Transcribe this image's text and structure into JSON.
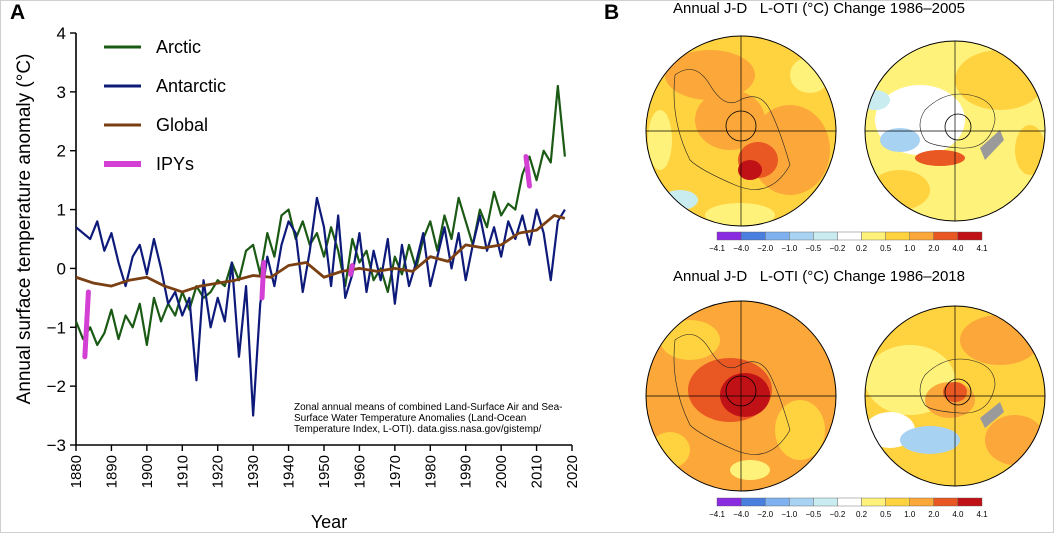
{
  "panel_a": {
    "letter": "A",
    "chart_data": {
      "type": "line",
      "xlabel": "Year",
      "ylabel": "Annual surface temperature anomaly (°C)",
      "xlim": [
        1880,
        2020
      ],
      "ylim": [
        -3,
        4
      ],
      "xticks": [
        "1880",
        "1890",
        "1900",
        "1910",
        "1920",
        "1930",
        "1940",
        "1950",
        "1960",
        "1970",
        "1980",
        "1990",
        "2000",
        "2010",
        "2020"
      ],
      "yticks": [
        "−3",
        "−2",
        "−1",
        "0",
        "1",
        "2",
        "3",
        "4"
      ],
      "grid": false,
      "legend_position": "top-left",
      "series": [
        {
          "name": "Arctic",
          "color": "#1a5a14",
          "x": [
            1880,
            1882,
            1884,
            1886,
            1888,
            1890,
            1892,
            1894,
            1896,
            1898,
            1900,
            1902,
            1904,
            1906,
            1908,
            1910,
            1912,
            1914,
            1916,
            1918,
            1920,
            1922,
            1924,
            1926,
            1928,
            1930,
            1932,
            1934,
            1936,
            1938,
            1940,
            1942,
            1944,
            1946,
            1948,
            1950,
            1952,
            1954,
            1956,
            1958,
            1960,
            1962,
            1964,
            1966,
            1968,
            1970,
            1972,
            1974,
            1976,
            1978,
            1980,
            1982,
            1984,
            1986,
            1988,
            1990,
            1992,
            1994,
            1996,
            1998,
            2000,
            2002,
            2004,
            2006,
            2008,
            2010,
            2012,
            2014,
            2016,
            2018
          ],
          "y": [
            -0.9,
            -1.2,
            -1.0,
            -1.3,
            -1.1,
            -0.7,
            -1.2,
            -0.8,
            -1.0,
            -0.6,
            -1.3,
            -0.5,
            -0.9,
            -0.6,
            -0.8,
            -0.4,
            -0.7,
            -0.3,
            -0.5,
            -0.4,
            -0.2,
            -0.3,
            0.1,
            -0.2,
            0.3,
            0.4,
            -0.1,
            0.6,
            0.2,
            0.9,
            1.0,
            0.5,
            0.8,
            0.4,
            0.6,
            0.2,
            0.7,
            0.3,
            -0.3,
            0.5,
            0.1,
            0.3,
            -0.2,
            0.0,
            -0.4,
            0.2,
            -0.1,
            0.4,
            0.0,
            0.5,
            0.8,
            0.3,
            0.9,
            0.5,
            1.2,
            0.8,
            0.4,
            1.0,
            0.7,
            1.3,
            0.9,
            1.1,
            1.0,
            1.6,
            1.9,
            1.5,
            2.0,
            1.8,
            3.1,
            1.9
          ]
        },
        {
          "name": "Antarctic",
          "color": "#0d1a7a",
          "x": [
            1880,
            1882,
            1884,
            1886,
            1888,
            1890,
            1892,
            1894,
            1896,
            1898,
            1900,
            1902,
            1904,
            1906,
            1908,
            1910,
            1912,
            1914,
            1916,
            1918,
            1920,
            1922,
            1924,
            1926,
            1928,
            1930,
            1932,
            1934,
            1936,
            1938,
            1940,
            1942,
            1944,
            1946,
            1948,
            1950,
            1952,
            1954,
            1956,
            1958,
            1960,
            1962,
            1964,
            1966,
            1968,
            1970,
            1972,
            1974,
            1976,
            1978,
            1980,
            1982,
            1984,
            1986,
            1988,
            1990,
            1992,
            1994,
            1996,
            1998,
            2000,
            2002,
            2004,
            2006,
            2008,
            2010,
            2012,
            2014,
            2016,
            2018
          ],
          "y": [
            0.7,
            0.6,
            0.5,
            0.8,
            0.3,
            0.6,
            0.1,
            -0.3,
            0.2,
            0.4,
            -0.1,
            0.5,
            0.0,
            -0.6,
            -0.4,
            -0.8,
            -0.5,
            -1.9,
            -0.2,
            -1.0,
            -0.5,
            -0.9,
            0.1,
            -1.5,
            -0.3,
            -2.5,
            -0.6,
            0.2,
            -0.3,
            0.4,
            0.8,
            0.6,
            -0.4,
            0.3,
            1.2,
            0.7,
            -0.3,
            0.9,
            -0.5,
            -0.1,
            0.6,
            -0.4,
            0.3,
            -0.2,
            0.5,
            -0.6,
            0.4,
            -0.3,
            0.1,
            0.6,
            -0.3,
            0.2,
            0.7,
            0.0,
            0.6,
            -0.2,
            0.4,
            0.9,
            0.3,
            0.7,
            0.2,
            0.8,
            0.5,
            0.9,
            0.4,
            1.0,
            0.6,
            -0.2,
            0.8,
            1.0
          ]
        },
        {
          "name": "Global",
          "color": "#7a3f12",
          "x": [
            1880,
            1885,
            1890,
            1895,
            1900,
            1905,
            1910,
            1915,
            1920,
            1925,
            1930,
            1935,
            1940,
            1945,
            1950,
            1955,
            1960,
            1965,
            1970,
            1975,
            1980,
            1985,
            1990,
            1995,
            2000,
            2005,
            2010,
            2015,
            2018
          ],
          "y": [
            -0.15,
            -0.25,
            -0.3,
            -0.2,
            -0.15,
            -0.3,
            -0.4,
            -0.3,
            -0.25,
            -0.2,
            -0.12,
            -0.15,
            0.05,
            0.1,
            -0.15,
            -0.05,
            0.0,
            -0.05,
            0.0,
            -0.05,
            0.2,
            0.12,
            0.4,
            0.35,
            0.4,
            0.6,
            0.65,
            0.9,
            0.85
          ]
        },
        {
          "name": "IPYs",
          "color": "#d43fd4",
          "segments": [
            {
              "x": [
                1882.5,
                1883.5
              ],
              "y": [
                -1.5,
                -0.4
              ]
            },
            {
              "x": [
                1932.5,
                1933.0
              ],
              "y": [
                -0.5,
                0.1
              ]
            },
            {
              "x": [
                1957.5,
                1958.0
              ],
              "y": [
                -0.1,
                0.05
              ]
            },
            {
              "x": [
                2007.0,
                2008.0
              ],
              "y": [
                1.9,
                1.4
              ]
            }
          ]
        }
      ]
    },
    "legend": [
      "Arctic",
      "Antarctic",
      "Global",
      "IPYs"
    ],
    "annotation": [
      "Zonal annual means of combined Land-Surface Air and Sea-",
      "Surface Water Temperature Anomalies (Land-Ocean",
      "Temperature Index, L-OTI). data.giss.nasa.gov/gistemp/"
    ]
  },
  "panel_b": {
    "letter": "B",
    "maps": [
      {
        "title": "Annual J-D   L-OTI (°C) Change 1986–2005"
      },
      {
        "title": "Annual J-D   L-OTI (°C) Change 1986–2018"
      }
    ],
    "colorbar": {
      "labels": [
        "−4.1",
        "−4.0",
        "−2.0",
        "−1.0",
        "−0.5",
        "−0.2",
        "0.2",
        "0.5",
        "1.0",
        "2.0",
        "4.0",
        "4.1"
      ],
      "colors": [
        "#8a2be2",
        "#4a7fe0",
        "#7fb1f0",
        "#a8d2f2",
        "#c9ecf0",
        "#ffffff",
        "#fff27a",
        "#ffd23f",
        "#fba73a",
        "#e95722",
        "#c01216"
      ]
    }
  }
}
